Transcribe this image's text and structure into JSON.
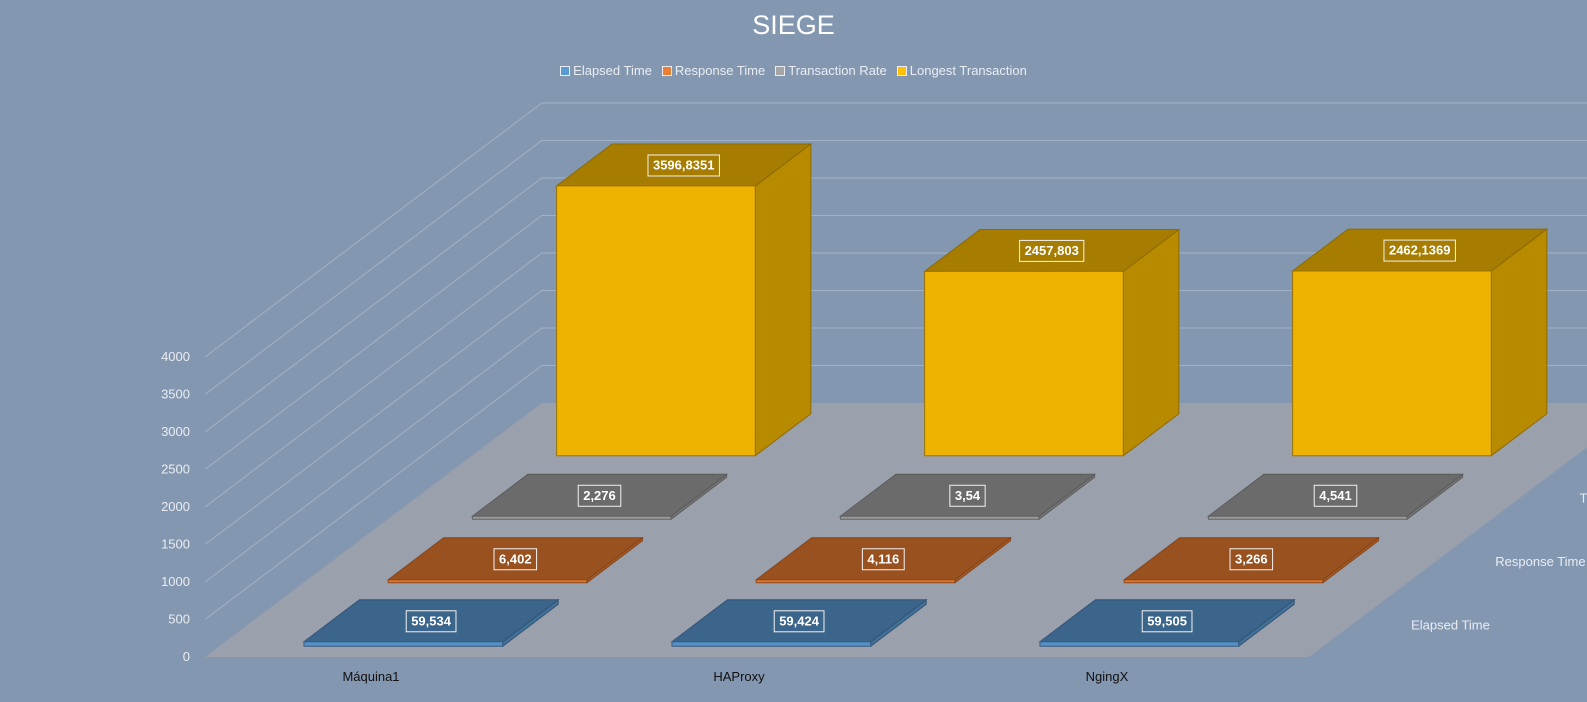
{
  "chart_data": {
    "type": "bar",
    "subtype": "3d-column",
    "title": "SIEGE",
    "categories": [
      "Máquina1",
      "HAProxy",
      "NgingX"
    ],
    "series": [
      {
        "name": "Elapsed Time",
        "color": "#5b9bd5",
        "values": [
          59.534,
          59.424,
          59.505
        ],
        "labels": [
          "59,534",
          "59,424",
          "59,505"
        ]
      },
      {
        "name": "Response Time",
        "color": "#ed7d31",
        "values": [
          6.402,
          4.116,
          3.266
        ],
        "labels": [
          "6,402",
          "4,116",
          "3,266"
        ]
      },
      {
        "name": "Transaction Rate",
        "color": "#a5a5a5",
        "values": [
          2.276,
          3.54,
          4.541
        ],
        "labels": [
          "2,276",
          "3,54",
          "4,541"
        ]
      },
      {
        "name": "Longest Transaction",
        "color": "#ffc000",
        "values": [
          3596.8351,
          2457.803,
          2462.1369
        ],
        "labels": [
          "3596,8351",
          "2457,803",
          "2462,1369"
        ]
      }
    ],
    "yticks": [
      "0",
      "500",
      "1000",
      "1500",
      "2000",
      "2500",
      "3000",
      "3500",
      "4000"
    ],
    "ylim": [
      0,
      4000
    ],
    "grid": true,
    "legend": "top"
  }
}
